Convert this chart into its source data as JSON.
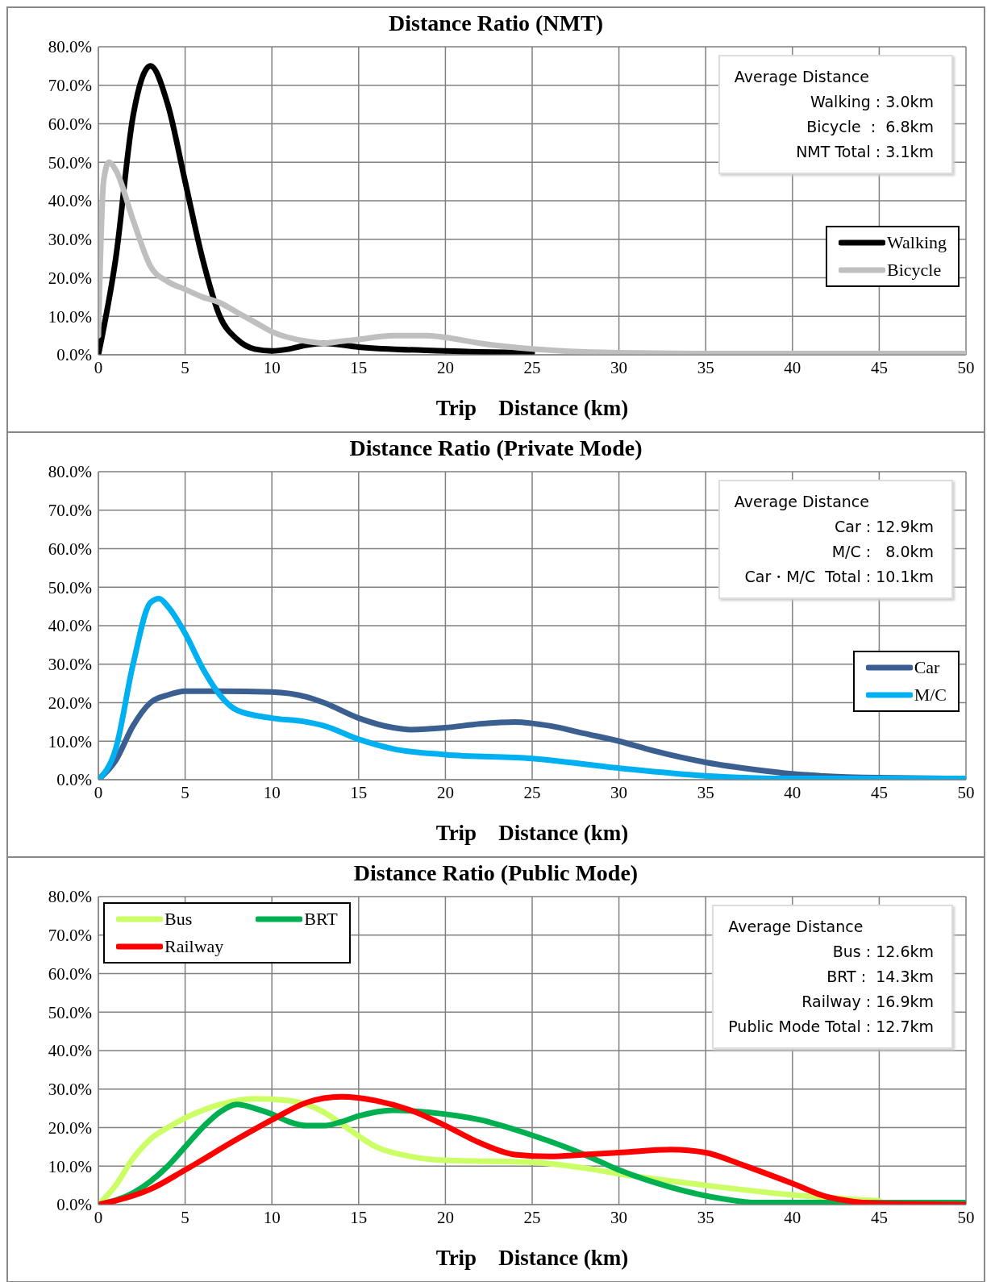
{
  "chart_data": [
    {
      "type": "line",
      "title": "Distance Ratio (NMT)",
      "xlabel": "Trip　Distance (km)",
      "xlim": [
        0,
        50
      ],
      "xticks": [
        0,
        5,
        10,
        15,
        20,
        25,
        30,
        35,
        40,
        45,
        50
      ],
      "ylim": [
        0,
        80
      ],
      "yticks": [
        {
          "value": 0,
          "label": "0.0%"
        },
        {
          "value": 10,
          "label": "10.0%"
        },
        {
          "value": 20,
          "label": "20.0%"
        },
        {
          "value": 30,
          "label": "30.0%"
        },
        {
          "value": 40,
          "label": "40.0%"
        },
        {
          "value": 50,
          "label": "50.0%"
        },
        {
          "value": 60,
          "label": "60.0%"
        },
        {
          "value": 70,
          "label": "70.0%"
        },
        {
          "value": 80,
          "label": "80.0%"
        }
      ],
      "grid": true,
      "legend": "right",
      "marker": "none",
      "annotations": [
        "Average Distance",
        "Walking : 3.0km",
        "Bicycle  :  6.8km",
        "NMT Total : 3.1km"
      ],
      "series": [
        {
          "name": "Walking",
          "color": "#000000",
          "x": [
            0,
            1,
            2,
            3,
            4,
            5,
            6,
            7,
            8,
            9,
            10,
            11,
            12,
            13,
            15,
            20,
            25
          ],
          "values": [
            0,
            25,
            62,
            75,
            65,
            45,
            25,
            10,
            4,
            1.5,
            1,
            1.5,
            2.5,
            3,
            2,
            1,
            0.5
          ]
        },
        {
          "name": "Bicycle",
          "color": "#bfbfbf",
          "x": [
            0,
            0.3,
            0.6,
            1,
            2,
            3,
            4,
            5,
            6,
            7,
            8,
            9,
            10,
            12,
            13,
            14,
            15,
            17,
            19,
            20,
            22,
            25,
            30,
            35,
            50
          ],
          "values": [
            5,
            45,
            50,
            48,
            35,
            23,
            19,
            17,
            15,
            13.5,
            11,
            8.5,
            6,
            3.5,
            3,
            3.5,
            4,
            5,
            5,
            4.5,
            3,
            1.5,
            0.5,
            0.3,
            0.3
          ]
        }
      ]
    },
    {
      "type": "line",
      "title": "Distance Ratio (Private Mode)",
      "xlabel": "Trip　Distance (km)",
      "xlim": [
        0,
        50
      ],
      "xticks": [
        0,
        5,
        10,
        15,
        20,
        25,
        30,
        35,
        40,
        45,
        50
      ],
      "ylim": [
        0,
        80
      ],
      "yticks": [
        {
          "value": 0,
          "label": "0.0%"
        },
        {
          "value": 10,
          "label": "10.0%"
        },
        {
          "value": 20,
          "label": "20.0%"
        },
        {
          "value": 30,
          "label": "30.0%"
        },
        {
          "value": 40,
          "label": "40.0%"
        },
        {
          "value": 50,
          "label": "50.0%"
        },
        {
          "value": 60,
          "label": "60.0%"
        },
        {
          "value": 70,
          "label": "70.0%"
        },
        {
          "value": 80,
          "label": "80.0%"
        }
      ],
      "grid": true,
      "legend": "right",
      "marker": "none",
      "annotations": [
        "Average Distance",
        "Car : 12.9km",
        "M/C :   8.0km",
        "Car・M/C  Total : 10.1km"
      ],
      "series": [
        {
          "name": "Car",
          "color": "#3b5f91",
          "x": [
            0,
            1,
            2,
            3,
            4,
            5,
            7,
            10,
            12,
            13,
            15,
            17,
            18,
            20,
            22,
            24,
            26,
            28,
            30,
            32,
            35,
            38,
            40,
            45,
            50
          ],
          "values": [
            0,
            5,
            14,
            20,
            22,
            23,
            23,
            22.8,
            21.5,
            20,
            16,
            13.5,
            13,
            13.5,
            14.5,
            15,
            14,
            12,
            10,
            7.5,
            4.5,
            2.5,
            1.5,
            0.5,
            0.3
          ]
        },
        {
          "name": "M/C",
          "color": "#00b0f0",
          "x": [
            0,
            1,
            2,
            3,
            3.5,
            4,
            5,
            6,
            7,
            8,
            10,
            12,
            13,
            15,
            17,
            20,
            25,
            30,
            35,
            40,
            50
          ],
          "values": [
            0,
            8,
            30,
            46,
            47,
            45,
            38,
            29,
            22,
            18,
            16,
            15,
            14,
            10.5,
            8,
            6.5,
            5.5,
            3,
            1,
            0.3,
            0.3
          ]
        }
      ]
    },
    {
      "type": "line",
      "title": "Distance Ratio (Public Mode)",
      "xlabel": "Trip　Distance (km)",
      "xlim": [
        0,
        50
      ],
      "xticks": [
        0,
        5,
        10,
        15,
        20,
        25,
        30,
        35,
        40,
        45,
        50
      ],
      "ylim": [
        0,
        80
      ],
      "yticks": [
        {
          "value": 0,
          "label": "0.0%"
        },
        {
          "value": 10,
          "label": "10.0%"
        },
        {
          "value": 20,
          "label": "20.0%"
        },
        {
          "value": 30,
          "label": "30.0%"
        },
        {
          "value": 40,
          "label": "40.0%"
        },
        {
          "value": 50,
          "label": "50.0%"
        },
        {
          "value": 60,
          "label": "60.0%"
        },
        {
          "value": 70,
          "label": "70.0%"
        },
        {
          "value": 80,
          "label": "80.0%"
        }
      ],
      "grid": true,
      "legend": "top left",
      "marker": "none",
      "annotations": [
        "Average Distance",
        "Bus : 12.6km",
        "BRT :  14.3km",
        "Railway : 16.9km",
        "Public Mode Total : 12.7km"
      ],
      "series": [
        {
          "name": "Bus",
          "color": "#ccff66",
          "x": [
            0,
            1,
            2,
            3,
            4,
            5,
            7,
            9,
            11,
            13,
            14,
            16,
            18,
            20,
            25,
            28,
            30,
            35,
            40,
            45
          ],
          "values": [
            0,
            5,
            12,
            17,
            20,
            22.5,
            26,
            27.5,
            27,
            24,
            21,
            15,
            12.5,
            11.5,
            11,
            9.5,
            8,
            5,
            2.5,
            1
          ]
        },
        {
          "name": "BRT",
          "color": "#00b050",
          "x": [
            0,
            2,
            3,
            4,
            5,
            6,
            7,
            8,
            9,
            10,
            11,
            12,
            13,
            14,
            15,
            17,
            19,
            22,
            25,
            28,
            30,
            33,
            36,
            38,
            50
          ],
          "values": [
            0,
            3,
            6,
            10,
            15,
            20,
            24,
            26,
            25,
            23.5,
            21.5,
            20.5,
            20.5,
            21.5,
            23,
            24.5,
            24,
            22,
            18,
            13,
            9,
            4.5,
            1.5,
            0.5,
            0.5
          ]
        },
        {
          "name": "Railway",
          "color": "#ff0000",
          "x": [
            0,
            1,
            3,
            5,
            8,
            10,
            12,
            14,
            16,
            18,
            20,
            22,
            24,
            26,
            28,
            30,
            33,
            35,
            37,
            40,
            42,
            45,
            50
          ],
          "values": [
            0,
            1,
            4,
            9,
            17,
            22,
            26.5,
            28,
            27,
            24.5,
            20.5,
            16,
            13,
            12.5,
            13,
            13.5,
            14.3,
            13.5,
            10.5,
            5.5,
            2,
            0.3,
            0
          ]
        }
      ]
    }
  ]
}
